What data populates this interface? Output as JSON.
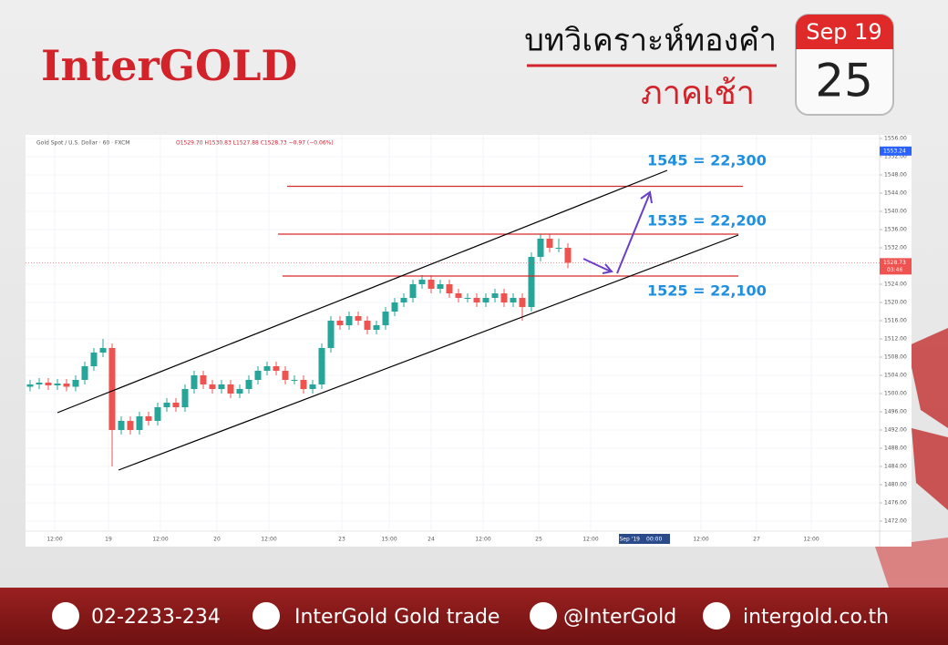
{
  "header": {
    "brand": "InterGOLD",
    "title": "บทวิเคราะห์ทองคำ",
    "subtitle": "ภาคเช้า",
    "month": "Sep 19",
    "day": "25"
  },
  "chart_data": {
    "type": "candlestick",
    "title": "Gold Spot / U.S. Dollar · 60 · FXCM",
    "ohlc_legend": "O1529.70 H1530.83 L1527.88 C1528.73 −0.97 (−0.06%)",
    "up_color": "#26a69a",
    "down_color": "#ef5350",
    "grid": true,
    "x": [
      1,
      3,
      5,
      7,
      9,
      11,
      13,
      15,
      17,
      19,
      21,
      23,
      25,
      27,
      29,
      31,
      33,
      35,
      37,
      39,
      41,
      43,
      45,
      47,
      49,
      51,
      53,
      55,
      57,
      59,
      61,
      63,
      65,
      67,
      69,
      71,
      73,
      75,
      77,
      79,
      81,
      83,
      85,
      87,
      89,
      91,
      93,
      95,
      97,
      99,
      101,
      103,
      105,
      107,
      109,
      111,
      113,
      115,
      117,
      119
    ],
    "open": [
      1501.5,
      1502,
      1502.4,
      1501.8,
      1502.2,
      1501.5,
      1503,
      1506,
      1509,
      1510,
      1492,
      1494,
      1492,
      1495,
      1494,
      1497,
      1498,
      1497,
      1501,
      1504,
      1502,
      1501,
      1502,
      1500,
      1501,
      1503,
      1505,
      1506,
      1505,
      1503,
      1503,
      1501,
      1502,
      1510,
      1516,
      1515,
      1517,
      1516,
      1514,
      1515,
      1518,
      1520,
      1521,
      1524,
      1525,
      1523,
      1524,
      1522,
      1521,
      1521,
      1520,
      1521,
      1522,
      1520,
      1521,
      1519,
      1530,
      1534,
      1532,
      1532
    ],
    "high": [
      1503,
      1503.4,
      1503.4,
      1503.2,
      1503.2,
      1504,
      1507,
      1510,
      1512,
      1511,
      1495,
      1495,
      1496,
      1496,
      1498,
      1499,
      1499,
      1502,
      1505,
      1505,
      1503,
      1503,
      1503,
      1502,
      1504,
      1506,
      1507,
      1507,
      1506,
      1504,
      1504,
      1503,
      1511,
      1517,
      1517,
      1518,
      1518,
      1517,
      1516,
      1519,
      1521,
      1522,
      1525,
      1526,
      1526,
      1525,
      1525,
      1523,
      1522,
      1522,
      1522,
      1523,
      1523,
      1522,
      1522,
      1531,
      1535,
      1535,
      1534,
      1533
    ],
    "low": [
      1500.5,
      1501,
      1500.8,
      1500.8,
      1500.5,
      1500.5,
      1502,
      1505,
      1508,
      1484,
      1491,
      1491,
      1491,
      1493,
      1493,
      1496,
      1496,
      1496,
      1500,
      1501,
      1500,
      1500,
      1499,
      1499,
      1500,
      1502,
      1504,
      1504,
      1502,
      1502,
      1500,
      1500,
      1501,
      1509,
      1514,
      1514,
      1515,
      1513,
      1513,
      1514,
      1517,
      1519,
      1520,
      1523,
      1522,
      1522,
      1521,
      1520,
      1520,
      1519,
      1519,
      1520,
      1519,
      1519,
      1516,
      1518,
      1529,
      1531,
      1531,
      1527.5
    ],
    "close": [
      1502,
      1502.4,
      1501.8,
      1502.2,
      1501.5,
      1503,
      1506,
      1509,
      1510,
      1492,
      1494,
      1492,
      1495,
      1494,
      1497,
      1498,
      1497,
      1501,
      1504,
      1502,
      1501,
      1502,
      1500,
      1501,
      1503,
      1505,
      1506,
      1505,
      1503,
      1503,
      1501,
      1502,
      1510,
      1516,
      1515,
      1517,
      1516,
      1514,
      1515,
      1518,
      1520,
      1521,
      1524,
      1525,
      1523,
      1524,
      1522,
      1521,
      1521,
      1520,
      1521,
      1522,
      1520,
      1521,
      1519,
      1530,
      1534,
      1532,
      1532,
      1528.7
    ],
    "xlim": [
      0,
      187.4
    ],
    "ylim": [
      1466.8,
      1556.8
    ],
    "xticks": [
      {
        "value": 6.4,
        "label": "12:00"
      },
      {
        "value": 18.2,
        "label": "19"
      },
      {
        "value": 29.6,
        "label": "12:00"
      },
      {
        "value": 42,
        "label": "20"
      },
      {
        "value": 53.4,
        "label": "12:00"
      },
      {
        "value": 69.4,
        "label": "23"
      },
      {
        "value": 79.8,
        "label": "15:00"
      },
      {
        "value": 89,
        "label": "24"
      },
      {
        "value": 100.4,
        "label": "12:00"
      },
      {
        "value": 112.6,
        "label": "25"
      },
      {
        "value": 124,
        "label": "12:00"
      },
      {
        "value": 148.2,
        "label": "12:00"
      },
      {
        "value": 160.4,
        "label": "27"
      },
      {
        "value": 172.4,
        "label": "12:00"
      }
    ],
    "yticks": [
      {
        "value": 1472,
        "label": "1472.00"
      },
      {
        "value": 1476,
        "label": "1476.00"
      },
      {
        "value": 1480,
        "label": "1480.00"
      },
      {
        "value": 1484,
        "label": "1484.00"
      },
      {
        "value": 1488,
        "label": "1488.00"
      },
      {
        "value": 1492,
        "label": "1492.00"
      },
      {
        "value": 1496,
        "label": "1496.00"
      },
      {
        "value": 1500,
        "label": "1500.00"
      },
      {
        "value": 1504,
        "label": "1504.00"
      },
      {
        "value": 1508,
        "label": "1508.00"
      },
      {
        "value": 1512,
        "label": "1512.00"
      },
      {
        "value": 1516,
        "label": "1516.00"
      },
      {
        "value": 1520,
        "label": "1520.00"
      },
      {
        "value": 1524,
        "label": "1524.00"
      },
      {
        "value": 1528,
        "label": "1528.00"
      },
      {
        "value": 1532,
        "label": "1532.00"
      },
      {
        "value": 1536,
        "label": "1536.00"
      },
      {
        "value": 1540,
        "label": "1540.00"
      },
      {
        "value": 1544,
        "label": "1544.00"
      },
      {
        "value": 1548,
        "label": "1548.00"
      },
      {
        "value": 1552,
        "label": "1552.00"
      },
      {
        "value": 1556,
        "label": "1556.00"
      }
    ],
    "crosshair": {
      "x": 135.8,
      "x_label": "26 Sep '19",
      "x_time": "00:00",
      "y": 1553.24
    },
    "last": 1528.73,
    "countdown": "03:46",
    "annotations": [
      {
        "text": "1545 = 22,300",
        "value": 1545.5
      },
      {
        "text": "1535 = 22,200",
        "value": 1535
      },
      {
        "text": "1525 = 22,100",
        "value": 1525.8
      }
    ]
  },
  "footer": {
    "phone": "02-2233-234",
    "facebook": "InterGold Gold trade",
    "line": "@InterGold",
    "web": "intergold.co.th"
  }
}
